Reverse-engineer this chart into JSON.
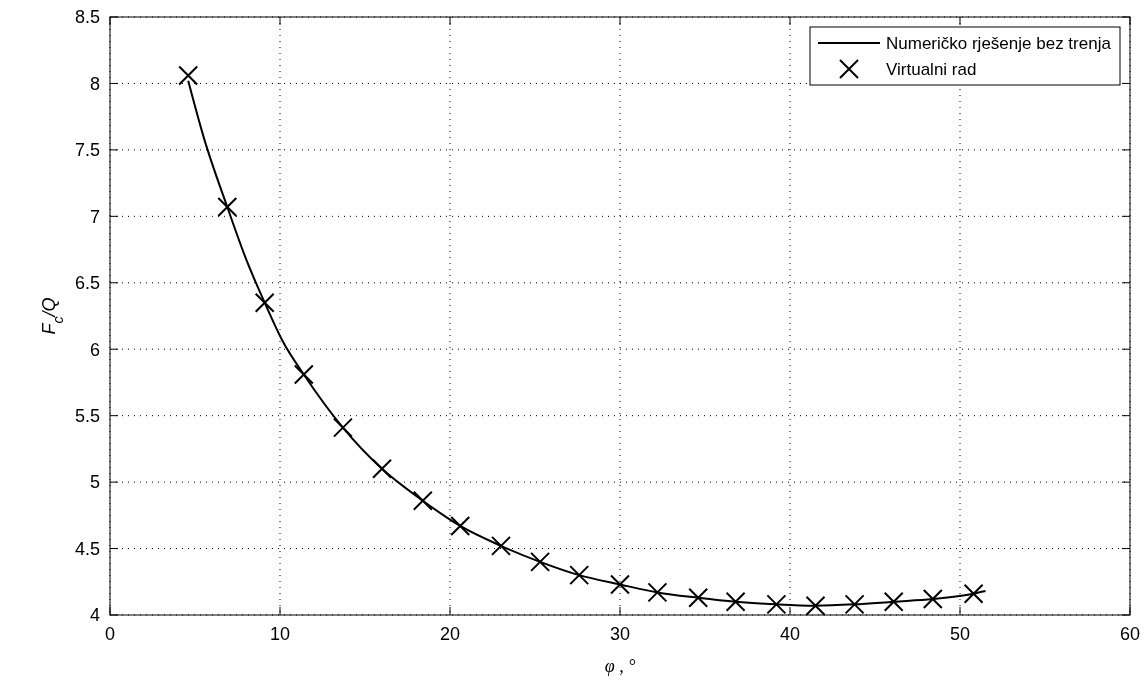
{
  "chart_data": {
    "type": "line",
    "xlabel": "φ , °",
    "ylabel": "F$_{c}$/Q",
    "xlim": [
      0,
      60
    ],
    "ylim": [
      4,
      8.5
    ],
    "xticks": [
      0,
      10,
      20,
      30,
      40,
      50,
      60
    ],
    "yticks": [
      4,
      4.5,
      5,
      5.5,
      6,
      6.5,
      7,
      7.5,
      8,
      8.5
    ],
    "grid": true,
    "legend": "top right",
    "series": [
      {
        "name": "Numeričko rješenje bez trenja",
        "color": "#000000",
        "marker": "none",
        "line_style": "solid",
        "x": [
          4.6,
          5.5,
          6.9,
          8.0,
          9.1,
          10.2,
          11.4,
          13.7,
          16.0,
          18.4,
          20.6,
          23.0,
          25.3,
          27.6,
          30.0,
          32.2,
          34.6,
          36.8,
          39.2,
          41.5,
          43.8,
          46.1,
          48.4,
          50.8,
          51.5
        ],
        "values": [
          8.02,
          7.6,
          7.07,
          6.68,
          6.35,
          6.05,
          5.81,
          5.41,
          5.1,
          4.86,
          4.67,
          4.52,
          4.4,
          4.3,
          4.23,
          4.17,
          4.13,
          4.1,
          4.08,
          4.07,
          4.08,
          4.1,
          4.12,
          4.16,
          4.18
        ]
      },
      {
        "name": "Virtualni rad",
        "color": "#000000",
        "type": "scatter",
        "marker": "cross",
        "x": [
          4.6,
          6.9,
          9.1,
          11.4,
          13.7,
          16.0,
          18.4,
          20.6,
          23.0,
          25.3,
          27.6,
          30.0,
          32.2,
          34.6,
          36.8,
          39.2,
          41.5,
          43.8,
          46.1,
          48.4,
          50.8
        ],
        "values": [
          8.06,
          7.07,
          6.35,
          5.81,
          5.41,
          5.1,
          4.86,
          4.67,
          4.52,
          4.4,
          4.3,
          4.23,
          4.17,
          4.13,
          4.1,
          4.08,
          4.07,
          4.08,
          4.1,
          4.12,
          4.16
        ]
      }
    ]
  }
}
